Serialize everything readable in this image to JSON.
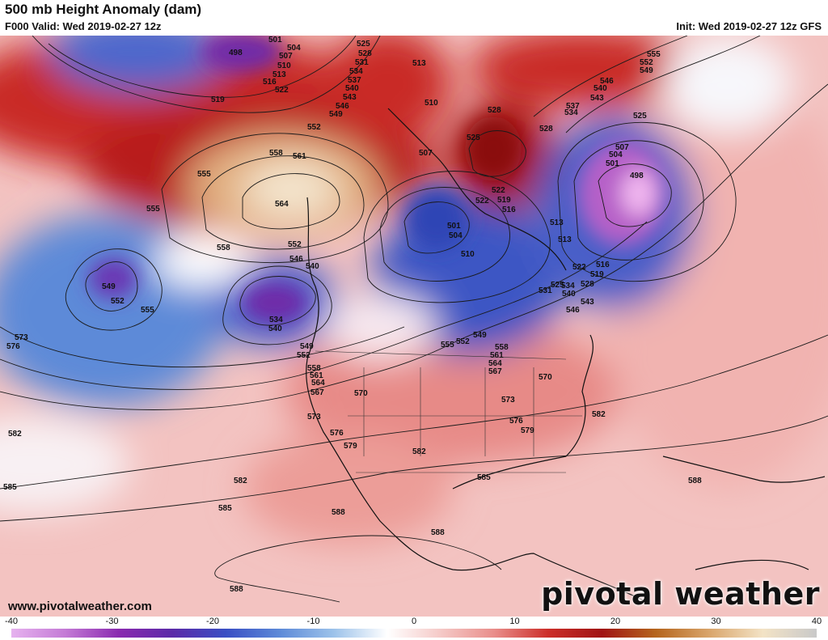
{
  "header": {
    "title": "500 mb Height Anomaly (dam)",
    "valid": "F000 Valid: Wed 2019-02-27 12z",
    "init": "Init: Wed 2019-02-27 12z GFS"
  },
  "footer": {
    "url": "www.pivotalweather.com",
    "brand": "pivotal weather"
  },
  "colorbar": {
    "min": -40,
    "max": 40,
    "ticks": [
      "-40",
      "-30",
      "-20",
      "-10",
      "0",
      "10",
      "20",
      "30",
      "40"
    ],
    "colors": [
      "#e6b2ef",
      "#c47bd6",
      "#8a2bb0",
      "#5b2ba8",
      "#3a4fc4",
      "#5d8ad8",
      "#9cc2ea",
      "#ffffff",
      "#f5c9c7",
      "#e98d8a",
      "#cc2f2a",
      "#a01414",
      "#b5651d",
      "#d9a56b",
      "#f3e3c6",
      "#c9c9c9"
    ]
  },
  "contour_labels": [
    "498",
    "501",
    "504",
    "507",
    "510",
    "513",
    "516",
    "519",
    "522",
    "525",
    "528",
    "531",
    "534",
    "537",
    "540",
    "543",
    "546",
    "549",
    "552",
    "555",
    "558",
    "561",
    "564",
    "567",
    "570",
    "573",
    "576",
    "579",
    "582",
    "585",
    "588"
  ]
}
